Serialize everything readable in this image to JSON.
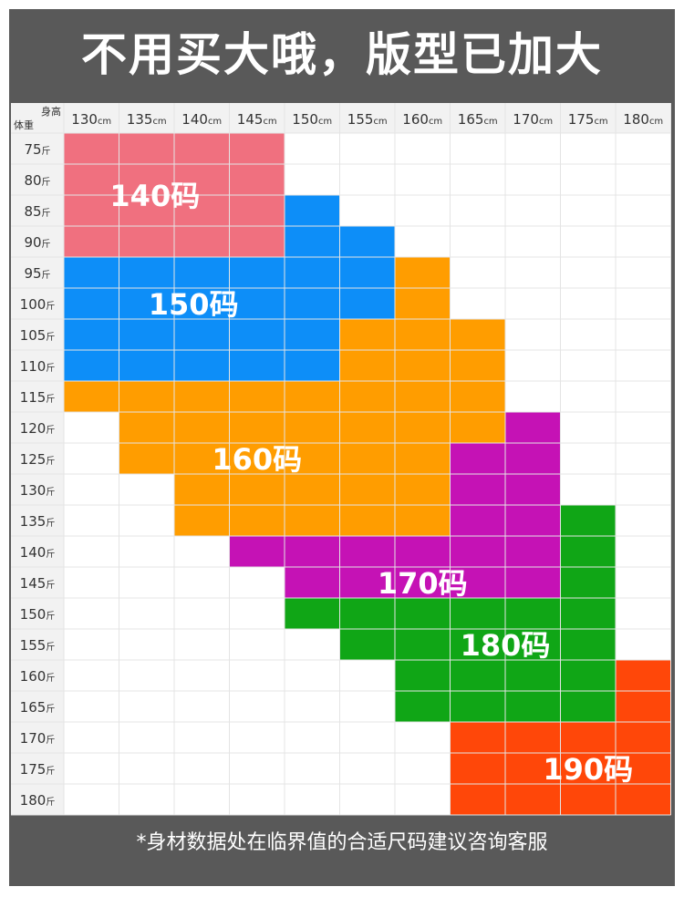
{
  "page": {
    "title": "不用买大哦，版型已加大",
    "footer": "*身材数据处在临界值的合适尺码建议咨询客服"
  },
  "header": {
    "height_label": "身高",
    "weight_label": "体重"
  },
  "chart_data": {
    "type": "heatmap",
    "x_unit": "cm",
    "y_unit": "斤",
    "heights": [
      130,
      135,
      140,
      145,
      150,
      155,
      160,
      165,
      170,
      175,
      180
    ],
    "weights": [
      75,
      80,
      85,
      90,
      95,
      100,
      105,
      110,
      115,
      120,
      125,
      130,
      135,
      140,
      145,
      150,
      155,
      160,
      165,
      170,
      175,
      180
    ],
    "sizes": [
      {
        "label": "140码",
        "color": "#f0707f",
        "row_spans": [
          [
            0,
            3
          ],
          [
            0,
            3
          ],
          [
            0,
            3
          ],
          [
            0,
            3
          ]
        ]
      },
      {
        "label": "150码",
        "color": "#0d8ef8",
        "row_spans": [
          null,
          null,
          [
            4,
            4
          ],
          [
            4,
            5
          ],
          [
            0,
            5
          ],
          [
            0,
            5
          ],
          [
            0,
            4
          ],
          [
            0,
            4
          ]
        ]
      },
      {
        "label": "160码",
        "color": "#ff9d00",
        "row_spans": [
          null,
          null,
          null,
          null,
          [
            6,
            6
          ],
          [
            6,
            6
          ],
          [
            5,
            7
          ],
          [
            5,
            7
          ],
          [
            0,
            7
          ],
          [
            1,
            7
          ],
          [
            1,
            6
          ],
          [
            2,
            6
          ],
          [
            2,
            6
          ]
        ]
      },
      {
        "label": "170码",
        "color": "#c512b5",
        "row_spans": [
          null,
          null,
          null,
          null,
          null,
          null,
          null,
          null,
          null,
          [
            8,
            8
          ],
          [
            7,
            8
          ],
          [
            7,
            8
          ],
          [
            7,
            8
          ],
          [
            3,
            8
          ],
          [
            4,
            8
          ]
        ]
      },
      {
        "label": "180码",
        "color": "#10a616",
        "row_spans": [
          null,
          null,
          null,
          null,
          null,
          null,
          null,
          null,
          null,
          null,
          null,
          null,
          [
            9,
            9
          ],
          [
            9,
            9
          ],
          [
            9,
            9
          ],
          [
            4,
            9
          ],
          [
            5,
            9
          ],
          [
            6,
            9
          ],
          [
            6,
            9
          ]
        ]
      },
      {
        "label": "190码",
        "color": "#ff4709",
        "row_spans": [
          null,
          null,
          null,
          null,
          null,
          null,
          null,
          null,
          null,
          null,
          null,
          null,
          null,
          null,
          null,
          null,
          null,
          [
            10,
            10
          ],
          [
            10,
            10
          ],
          [
            7,
            10
          ],
          [
            7,
            10
          ],
          [
            7,
            10
          ]
        ]
      }
    ],
    "colors": {
      "header_bg": "#f2f2f2",
      "empty_cell": "#ffffff",
      "grid_line": "#e4e4e4",
      "frame": "#595959",
      "label_text": "#ffffff",
      "axis_text": "#333333"
    }
  }
}
